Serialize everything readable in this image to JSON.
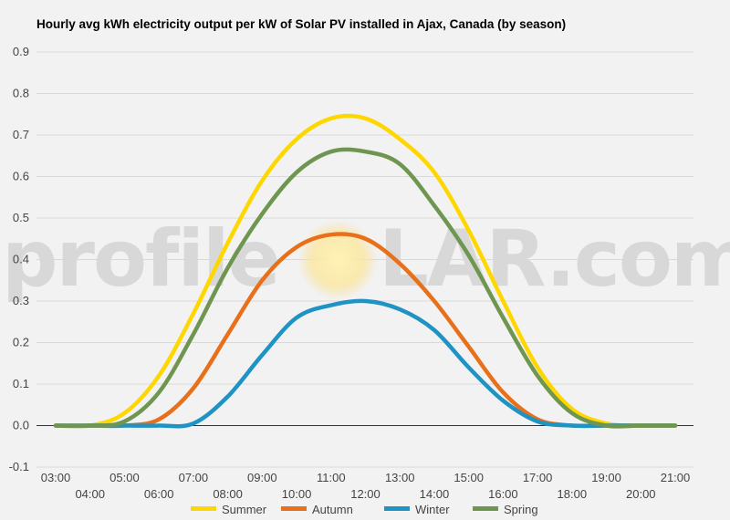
{
  "chart_data": {
    "type": "line",
    "title": "Hourly avg kWh electricity output per kW of Solar PV installed in Ajax, Canada (by season)",
    "xlabel": "",
    "ylabel": "",
    "ylim": [
      -0.1,
      0.9
    ],
    "yticks": [
      "-0.1",
      "0.0",
      "0.1",
      "0.2",
      "0.3",
      "0.4",
      "0.5",
      "0.6",
      "0.7",
      "0.8",
      "0.9"
    ],
    "x": [
      "03:00",
      "04:00",
      "05:00",
      "06:00",
      "07:00",
      "08:00",
      "09:00",
      "10:00",
      "11:00",
      "12:00",
      "13:00",
      "14:00",
      "15:00",
      "16:00",
      "17:00",
      "18:00",
      "19:00",
      "20:00",
      "21:00"
    ],
    "grid": true,
    "legend_position": "bottom",
    "series": [
      {
        "name": "Summer",
        "color": "#FFD700",
        "values": [
          0.0,
          0.0,
          0.03,
          0.12,
          0.27,
          0.44,
          0.59,
          0.69,
          0.74,
          0.74,
          0.69,
          0.61,
          0.47,
          0.3,
          0.14,
          0.04,
          0.005,
          0.0,
          0.0
        ]
      },
      {
        "name": "Autumn",
        "color": "#E8701A",
        "values": [
          0.0,
          0.0,
          0.0,
          0.015,
          0.09,
          0.22,
          0.35,
          0.43,
          0.46,
          0.45,
          0.39,
          0.3,
          0.19,
          0.08,
          0.015,
          0.0,
          0.0,
          0.0,
          0.0
        ]
      },
      {
        "name": "Winter",
        "color": "#1F93C4",
        "values": [
          0.0,
          0.0,
          0.0,
          0.0,
          0.005,
          0.07,
          0.17,
          0.26,
          0.29,
          0.3,
          0.28,
          0.23,
          0.14,
          0.06,
          0.01,
          0.0,
          0.0,
          0.0,
          0.0
        ]
      },
      {
        "name": "Spring",
        "color": "#6F9651",
        "values": [
          0.0,
          0.0,
          0.01,
          0.08,
          0.22,
          0.38,
          0.51,
          0.61,
          0.66,
          0.66,
          0.63,
          0.53,
          0.41,
          0.26,
          0.12,
          0.03,
          0.0,
          0.0,
          0.0
        ]
      }
    ]
  },
  "watermark": {
    "left": "profile",
    "sun": "S",
    "right": "LAR.com"
  }
}
